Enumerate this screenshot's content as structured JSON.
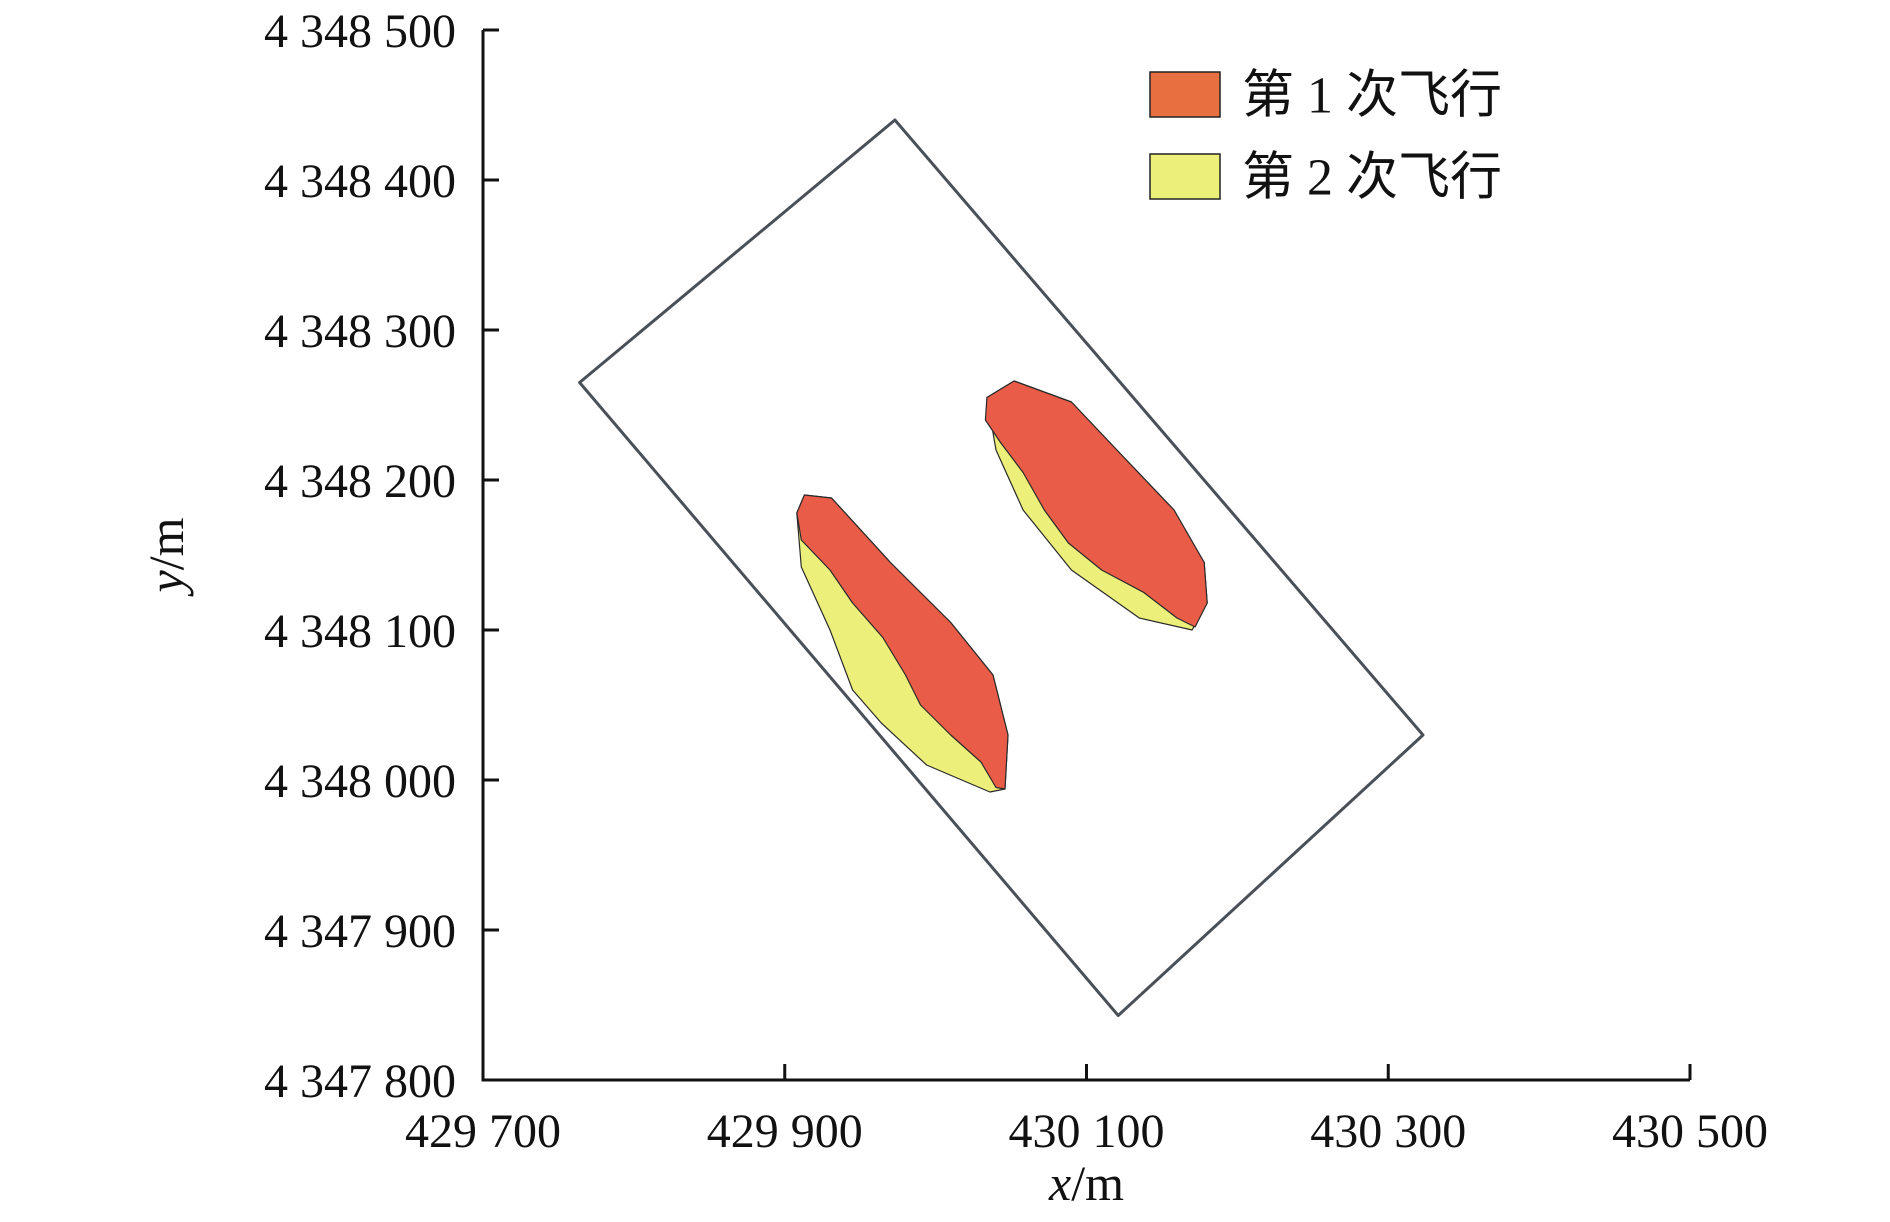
{
  "chart_data": {
    "type": "area",
    "title": "",
    "xlabel": {
      "var": "x",
      "unit": "/m"
    },
    "ylabel": {
      "var": "y",
      "unit": "/m"
    },
    "xlim": [
      429700,
      430500
    ],
    "ylim": [
      4347800,
      4348500
    ],
    "xticks": [
      429700,
      429900,
      430100,
      430300,
      430500
    ],
    "yticks": [
      4347800,
      4347900,
      4348000,
      4348100,
      4348200,
      4348300,
      4348400,
      4348500
    ],
    "xtick_labels": [
      "429 700",
      "429 900",
      "430 100",
      "430 300",
      "430 500"
    ],
    "ytick_labels": [
      "4 347 800",
      "4 347 900",
      "4 348 000",
      "4 348 100",
      "4 348 200",
      "4 348 300",
      "4 348 400",
      "4 348 500"
    ],
    "grid": false,
    "legend_position": "top-right",
    "boundary": {
      "color": "#4a5058",
      "points": [
        [
          429764,
          4348265
        ],
        [
          429973,
          4348440
        ],
        [
          430323,
          4348030
        ],
        [
          430121,
          4347843
        ]
      ]
    },
    "series": [
      {
        "name": "第 2 次飞行",
        "color": "#ecf07a",
        "regions": [
          [
            [
              429908,
              4348178
            ],
            [
              429913,
              4348190
            ],
            [
              429931,
              4348188
            ],
            [
              429970,
              4348145
            ],
            [
              430010,
              4348105
            ],
            [
              430038,
              4348070
            ],
            [
              430048,
              4348030
            ],
            [
              430046,
              4347994
            ],
            [
              430036,
              4347992
            ],
            [
              429994,
              4348010
            ],
            [
              429964,
              4348038
            ],
            [
              429945,
              4348060
            ],
            [
              429930,
              4348100
            ],
            [
              429911,
              4348142
            ]
          ],
          [
            [
              430034,
              4348255
            ],
            [
              430052,
              4348266
            ],
            [
              430090,
              4348252
            ],
            [
              430122,
              4348218
            ],
            [
              430158,
              4348180
            ],
            [
              430178,
              4348145
            ],
            [
              430180,
              4348118
            ],
            [
              430170,
              4348100
            ],
            [
              430135,
              4348108
            ],
            [
              430090,
              4348140
            ],
            [
              430058,
              4348180
            ],
            [
              430040,
              4348220
            ]
          ]
        ]
      },
      {
        "name": "第 1 次飞行",
        "color": "#e85c48",
        "regions": [
          [
            [
              429908,
              4348178
            ],
            [
              429913,
              4348190
            ],
            [
              429931,
              4348188
            ],
            [
              429970,
              4348145
            ],
            [
              430010,
              4348105
            ],
            [
              430038,
              4348070
            ],
            [
              430048,
              4348030
            ],
            [
              430046,
              4347994
            ],
            [
              430040,
              4347995
            ],
            [
              430030,
              4348012
            ],
            [
              430010,
              4348030
            ],
            [
              429990,
              4348050
            ],
            [
              429980,
              4348070
            ],
            [
              429965,
              4348095
            ],
            [
              429945,
              4348118
            ],
            [
              429930,
              4348140
            ],
            [
              429911,
              4348160
            ]
          ],
          [
            [
              430034,
              4348255
            ],
            [
              430052,
              4348266
            ],
            [
              430090,
              4348252
            ],
            [
              430122,
              4348218
            ],
            [
              430158,
              4348180
            ],
            [
              430178,
              4348145
            ],
            [
              430180,
              4348118
            ],
            [
              430172,
              4348102
            ],
            [
              430160,
              4348108
            ],
            [
              430138,
              4348125
            ],
            [
              430110,
              4348140
            ],
            [
              430088,
              4348158
            ],
            [
              430072,
              4348180
            ],
            [
              430058,
              4348205
            ],
            [
              430043,
              4348225
            ],
            [
              430033,
              4348240
            ]
          ]
        ]
      }
    ],
    "legend": [
      {
        "label": "第 1 次飞行",
        "color": "#e87040"
      },
      {
        "label": "第 2 次飞行",
        "color": "#ecf07a"
      }
    ]
  }
}
